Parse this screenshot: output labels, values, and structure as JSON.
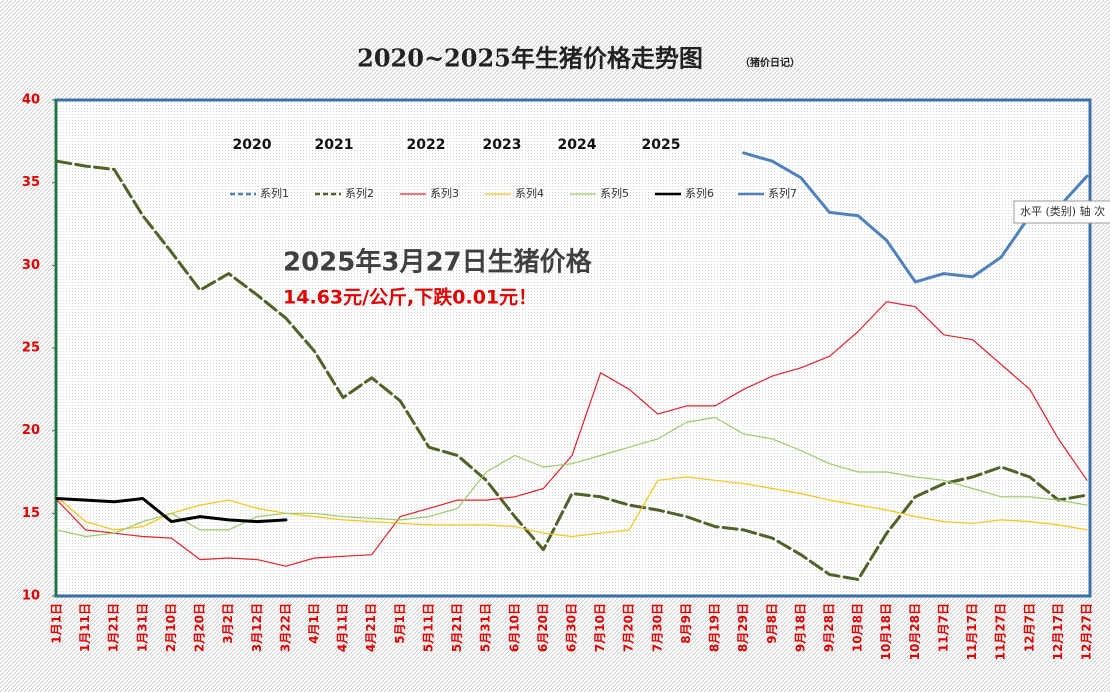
{
  "chart_data": {
    "type": "line",
    "title": "2020~2025年生猪价格走势图",
    "subtitle": "（猪价日记）",
    "annotations": [
      "2025年3月27日生猪价格",
      "14.63元/公斤,下跌0.01元！"
    ],
    "year_labels": [
      "2020",
      "2021",
      "2022",
      "2023",
      "2024",
      "2025"
    ],
    "tooltip": "水平 (类别) 轴 次",
    "categories": [
      "1月1日",
      "1月11日",
      "1月21日",
      "1月31日",
      "2月10日",
      "2月20日",
      "3月2日",
      "3月12日",
      "3月22日",
      "4月1日",
      "4月11日",
      "4月21日",
      "5月1日",
      "5月11日",
      "5月21日",
      "5月31日",
      "6月10日",
      "6月20日",
      "6月30日",
      "7月10日",
      "7月20日",
      "7月30日",
      "8月9日",
      "8月19日",
      "8月29日",
      "9月8日",
      "9月18日",
      "9月28日",
      "10月8日",
      "10月18日",
      "10月28日",
      "11月7日",
      "11月17日",
      "11月27日",
      "12月7日",
      "12月17日",
      "12月27日"
    ],
    "ylim": [
      10,
      40
    ],
    "yticks": [
      10,
      15,
      20,
      25,
      30,
      35,
      40
    ],
    "grid": false,
    "series": [
      {
        "name": "系列1",
        "color": "#4f81bd",
        "dashed": true,
        "width": 2.5,
        "values": [
          null,
          null,
          null,
          null,
          null,
          null,
          null,
          null,
          null,
          null,
          null,
          null,
          null,
          null,
          null,
          null,
          null,
          null,
          null,
          null,
          null,
          null,
          null,
          null,
          null,
          null,
          null,
          null,
          null,
          null,
          null,
          null,
          null,
          null,
          null,
          null,
          null
        ]
      },
      {
        "name": "系列2",
        "color": "#4f6228",
        "dashed": true,
        "width": 3,
        "values": [
          36.3,
          36.0,
          35.8,
          33.0,
          30.8,
          28.5,
          29.5,
          28.2,
          26.8,
          24.8,
          22.0,
          23.2,
          21.8,
          19.0,
          18.5,
          17.0,
          14.8,
          12.8,
          16.2,
          16.0,
          15.5,
          15.2,
          14.8,
          14.2,
          14.0,
          13.5,
          12.5,
          11.3,
          11.0,
          13.8,
          16.0,
          16.8,
          17.2,
          17.8,
          17.2,
          15.8,
          16.1
        ]
      },
      {
        "name": "系列3",
        "color": "#e8202a",
        "dashed": false,
        "width": 1.2,
        "values": [
          15.8,
          14.0,
          13.8,
          13.6,
          13.5,
          12.2,
          12.3,
          12.2,
          11.8,
          12.3,
          12.4,
          12.5,
          14.8,
          15.3,
          15.8,
          15.8,
          16.0,
          16.5,
          18.5,
          23.5,
          22.5,
          21.0,
          21.5,
          21.5,
          22.5,
          23.3,
          23.8,
          24.5,
          26.0,
          27.8,
          27.5,
          25.8,
          25.5,
          24.0,
          22.5,
          19.5,
          17.0
        ]
      },
      {
        "name": "系列4",
        "color": "#f5c518",
        "dashed": false,
        "width": 1.2,
        "values": [
          16.0,
          14.5,
          14.0,
          14.2,
          15.0,
          15.5,
          15.8,
          15.3,
          15.0,
          14.8,
          14.6,
          14.5,
          14.4,
          14.3,
          14.3,
          14.3,
          14.2,
          13.8,
          13.6,
          13.8,
          14.0,
          17.0,
          17.2,
          17.0,
          16.8,
          16.5,
          16.2,
          15.8,
          15.5,
          15.2,
          14.8,
          14.5,
          14.4,
          14.6,
          14.5,
          14.3,
          14.0
        ]
      },
      {
        "name": "系列5",
        "color": "#9bcb6a",
        "dashed": false,
        "width": 1.2,
        "values": [
          14.0,
          13.6,
          13.8,
          14.5,
          15.0,
          14.0,
          14.0,
          14.8,
          15.0,
          15.0,
          14.8,
          14.7,
          14.6,
          14.8,
          15.3,
          17.5,
          18.5,
          17.8,
          18.0,
          18.5,
          19.0,
          19.5,
          20.5,
          20.8,
          19.8,
          19.5,
          18.8,
          18.0,
          17.5,
          17.5,
          17.2,
          17.0,
          16.5,
          16.0,
          16.0,
          15.8,
          15.5
        ]
      },
      {
        "name": "系列6",
        "color": "#000000",
        "dashed": false,
        "width": 3,
        "values": [
          15.9,
          15.8,
          15.7,
          15.9,
          14.5,
          14.8,
          14.6,
          14.5,
          14.6,
          null,
          null,
          null,
          null,
          null,
          null,
          null,
          null,
          null,
          null,
          null,
          null,
          null,
          null,
          null,
          null,
          null,
          null,
          null,
          null,
          null,
          null,
          null,
          null,
          null,
          null,
          null,
          null
        ]
      },
      {
        "name": "系列7",
        "color": "#4f81bd",
        "dashed": false,
        "width": 3,
        "values": [
          null,
          null,
          null,
          null,
          null,
          null,
          null,
          null,
          null,
          null,
          null,
          null,
          null,
          null,
          null,
          null,
          null,
          null,
          null,
          null,
          null,
          null,
          null,
          null,
          36.8,
          36.3,
          35.3,
          33.2,
          33.0,
          31.5,
          29.0,
          29.5,
          29.3,
          30.5,
          33.0,
          33.5,
          35.4
        ]
      }
    ]
  }
}
